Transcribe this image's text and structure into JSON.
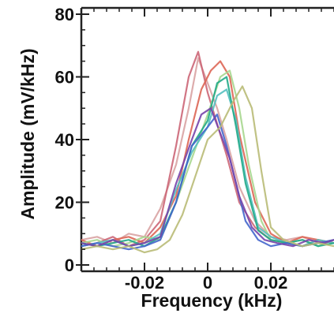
{
  "chart_data": {
    "type": "line",
    "title": "",
    "xlabel": "Frequency (kHz)",
    "ylabel": "Amplitude (mV/kHz)",
    "xlim": [
      -0.04,
      0.04
    ],
    "ylim": [
      -2,
      82
    ],
    "x_ticks": [
      -0.02,
      0,
      0.02
    ],
    "x_tick_labels": [
      "-0.02",
      "0",
      "0.02"
    ],
    "y_ticks": [
      0,
      20,
      40,
      60,
      80
    ],
    "y_tick_labels": [
      "0",
      "20",
      "40",
      "60",
      "80"
    ],
    "grid": false,
    "legend": "none",
    "series": [
      {
        "color": "#d9a3a3",
        "x": [
          -0.04,
          -0.035,
          -0.03,
          -0.025,
          -0.02,
          -0.015,
          -0.01,
          -0.006,
          -0.003,
          0,
          0.003,
          0.006,
          0.01,
          0.015,
          0.02,
          0.025,
          0.03,
          0.035,
          0.04
        ],
        "y": [
          8,
          9,
          7,
          10,
          9,
          18,
          32,
          50,
          66,
          58,
          50,
          40,
          25,
          14,
          9,
          8,
          9,
          7,
          8
        ]
      },
      {
        "color": "#cc6677",
        "x": [
          -0.04,
          -0.035,
          -0.03,
          -0.025,
          -0.02,
          -0.015,
          -0.01,
          -0.006,
          -0.003,
          0,
          0.003,
          0.006,
          0.01,
          0.015,
          0.02,
          0.025,
          0.03,
          0.035,
          0.04
        ],
        "y": [
          6,
          7,
          9,
          6,
          8,
          14,
          38,
          60,
          68,
          55,
          45,
          35,
          20,
          12,
          8,
          7,
          6,
          8,
          7
        ]
      },
      {
        "color": "#dd6655",
        "x": [
          -0.04,
          -0.035,
          -0.03,
          -0.025,
          -0.02,
          -0.015,
          -0.01,
          -0.006,
          -0.002,
          0.001,
          0.004,
          0.007,
          0.01,
          0.015,
          0.02,
          0.025,
          0.03,
          0.035,
          0.04
        ],
        "y": [
          8,
          6,
          8,
          9,
          7,
          12,
          22,
          40,
          56,
          62,
          65,
          60,
          42,
          20,
          10,
          7,
          9,
          8,
          7
        ]
      },
      {
        "color": "#a7d78f",
        "x": [
          -0.04,
          -0.035,
          -0.03,
          -0.025,
          -0.02,
          -0.015,
          -0.01,
          -0.005,
          0,
          0.004,
          0.007,
          0.01,
          0.013,
          0.017,
          0.02,
          0.025,
          0.03,
          0.035,
          0.04
        ],
        "y": [
          7,
          8,
          6,
          7,
          9,
          8,
          20,
          34,
          48,
          60,
          62,
          50,
          32,
          14,
          8,
          7,
          8,
          6,
          8
        ]
      },
      {
        "color": "#55c0c0",
        "x": [
          -0.04,
          -0.035,
          -0.03,
          -0.025,
          -0.02,
          -0.015,
          -0.01,
          -0.005,
          0,
          0.003,
          0.006,
          0.009,
          0.012,
          0.016,
          0.02,
          0.025,
          0.03,
          0.035,
          0.04
        ],
        "y": [
          6,
          7,
          8,
          6,
          7,
          10,
          24,
          36,
          44,
          54,
          56,
          46,
          28,
          12,
          9,
          7,
          6,
          8,
          7
        ]
      },
      {
        "color": "#22aa88",
        "x": [
          -0.04,
          -0.035,
          -0.03,
          -0.025,
          -0.02,
          -0.015,
          -0.01,
          -0.005,
          0,
          0.003,
          0.006,
          0.009,
          0.012,
          0.016,
          0.02,
          0.025,
          0.03,
          0.035,
          0.04
        ],
        "y": [
          7,
          6,
          7,
          8,
          6,
          9,
          20,
          38,
          46,
          58,
          60,
          44,
          26,
          11,
          8,
          7,
          8,
          6,
          7
        ]
      },
      {
        "color": "#4466cc",
        "x": [
          -0.04,
          -0.035,
          -0.03,
          -0.025,
          -0.02,
          -0.015,
          -0.01,
          -0.005,
          0,
          0.003,
          0.006,
          0.009,
          0.012,
          0.016,
          0.02,
          0.025,
          0.03,
          0.035,
          0.04
        ],
        "y": [
          6,
          7,
          6,
          5,
          6,
          8,
          20,
          38,
          44,
          48,
          38,
          26,
          14,
          8,
          6,
          7,
          6,
          7,
          8
        ]
      },
      {
        "color": "#7744aa",
        "x": [
          -0.04,
          -0.035,
          -0.03,
          -0.025,
          -0.02,
          -0.015,
          -0.01,
          -0.005,
          -0.002,
          0.001,
          0.004,
          0.007,
          0.01,
          0.014,
          0.018,
          0.022,
          0.027,
          0.032,
          0.037,
          0.04
        ],
        "y": [
          7,
          6,
          8,
          6,
          7,
          9,
          26,
          40,
          48,
          50,
          42,
          34,
          22,
          12,
          8,
          7,
          6,
          8,
          7,
          8
        ]
      },
      {
        "color": "#b9bb77",
        "x": [
          -0.04,
          -0.035,
          -0.03,
          -0.025,
          -0.02,
          -0.016,
          -0.012,
          -0.008,
          -0.004,
          0,
          0.004,
          0.008,
          0.011,
          0.014,
          0.017,
          0.02,
          0.024,
          0.03,
          0.035,
          0.04
        ],
        "y": [
          5,
          6,
          5,
          6,
          4,
          5,
          8,
          16,
          28,
          40,
          44,
          52,
          57,
          50,
          30,
          12,
          8,
          6,
          7,
          6
        ]
      }
    ]
  }
}
